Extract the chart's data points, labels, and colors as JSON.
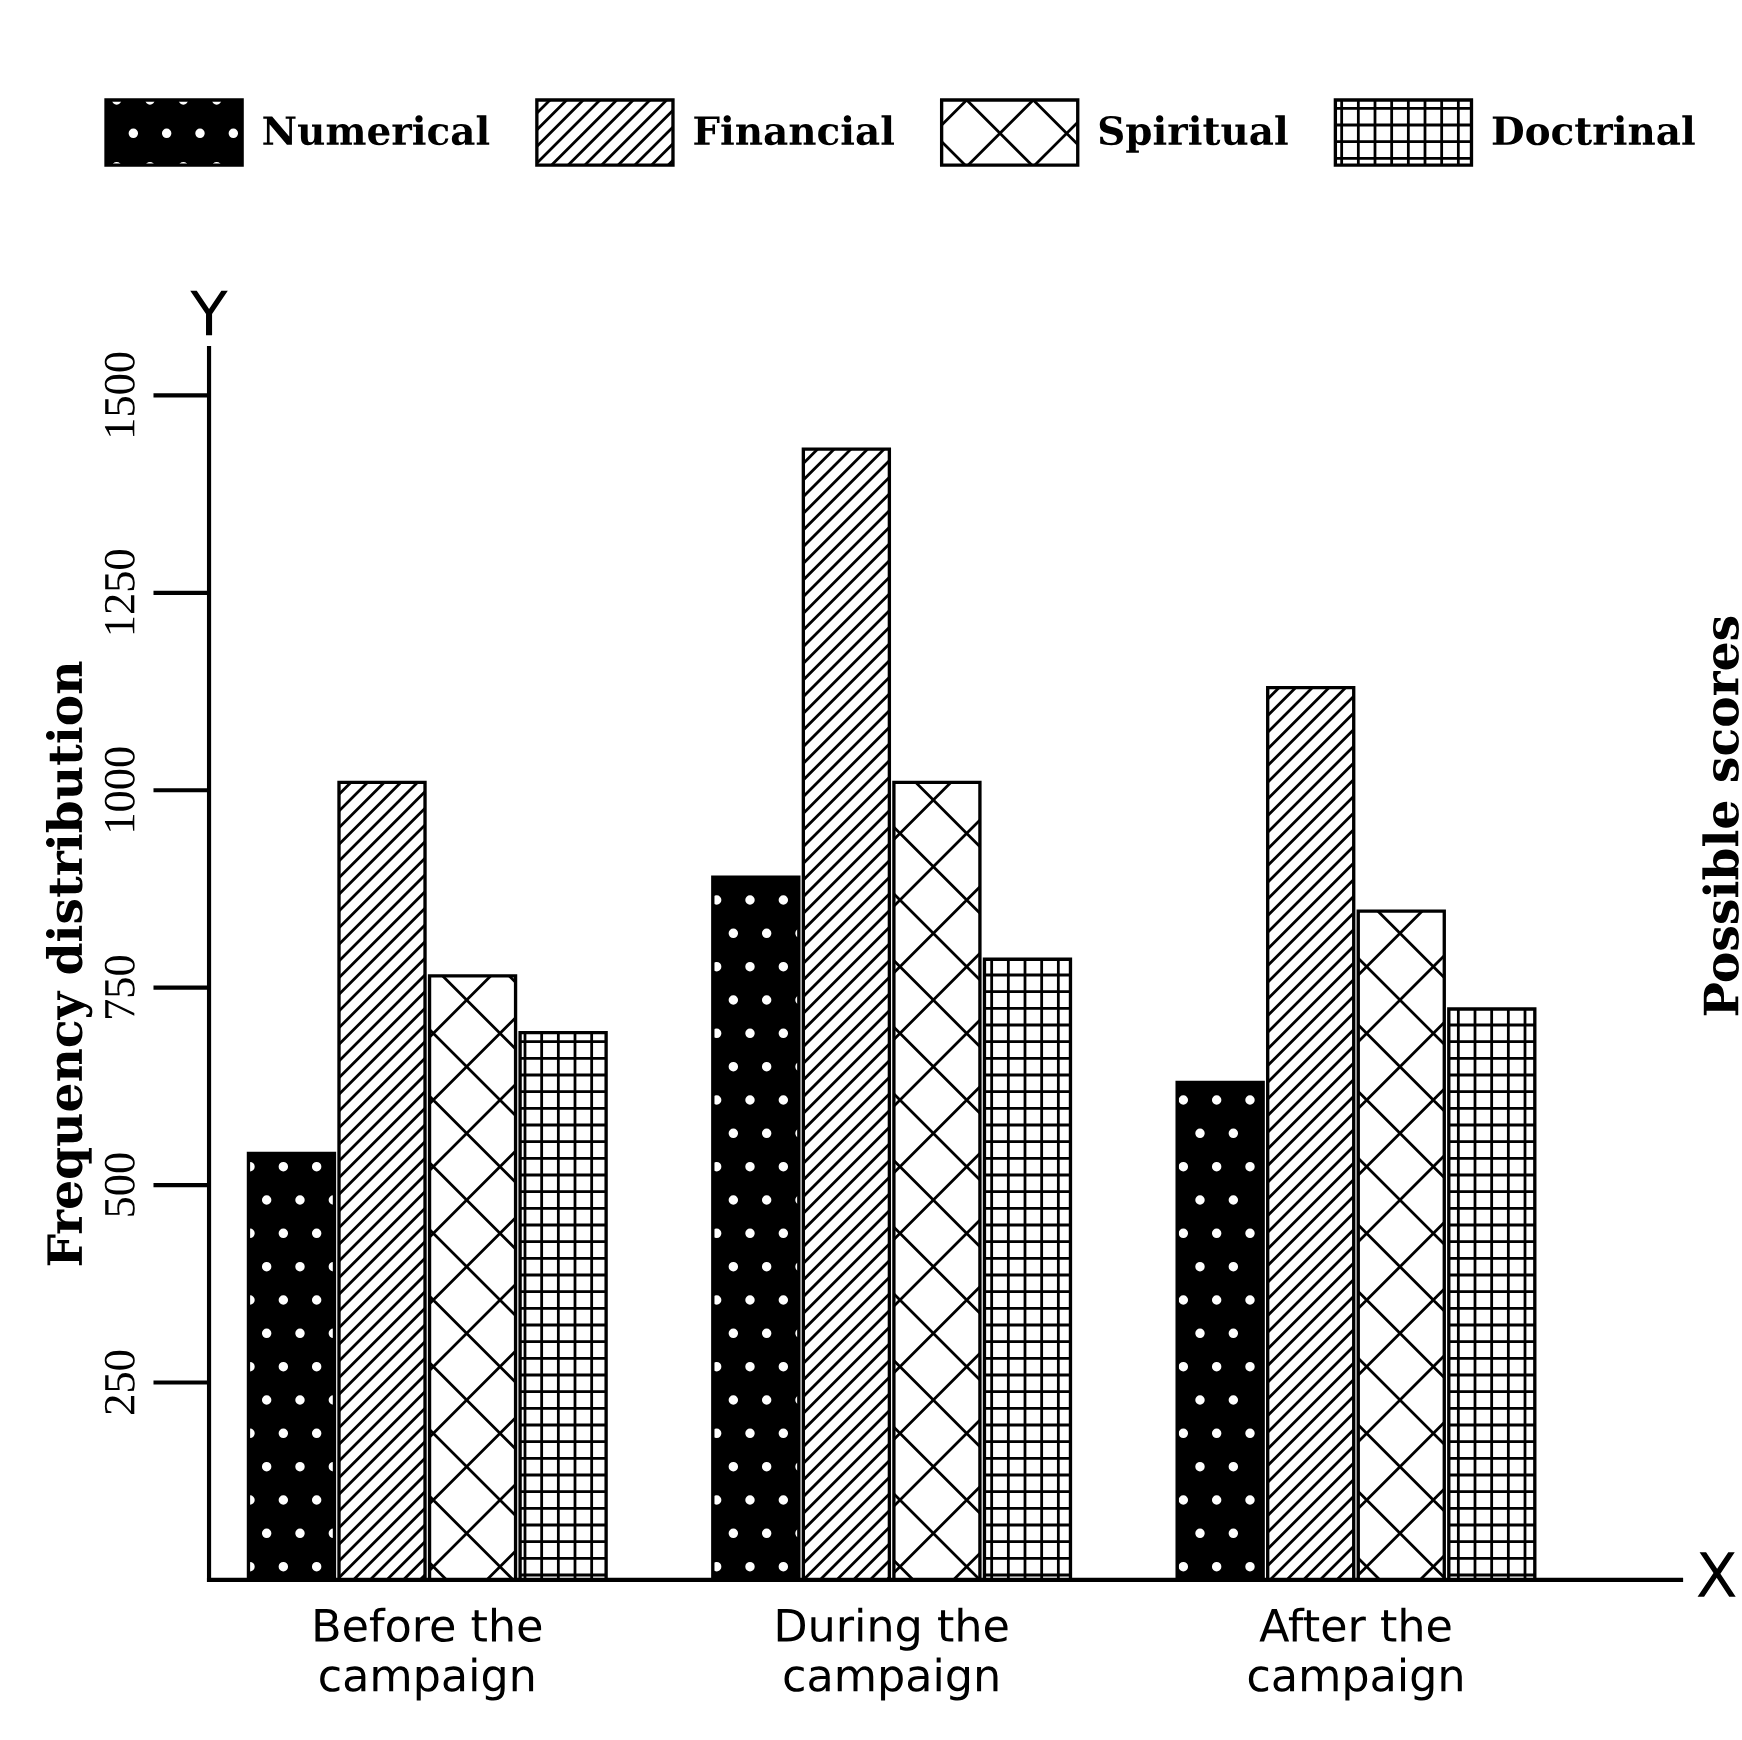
{
  "chart_data": {
    "type": "bar",
    "categories": [
      "Before the\ncampaign",
      "During the\ncampaign",
      "After the\ncampaign"
    ],
    "series": [
      {
        "name": "Numerical",
        "color": "#000000",
        "values": [
          540,
          890,
          630
        ]
      },
      {
        "name": "Financial",
        "color": "#000000",
        "values": [
          1010,
          1432,
          1130
        ]
      },
      {
        "name": "Spiritual",
        "color": "#000000",
        "values": [
          765,
          1010,
          847
        ]
      },
      {
        "name": "Doctrinal",
        "color": "#000000",
        "values": [
          693,
          786,
          723
        ]
      }
    ],
    "ylabel": "Frequency distribution",
    "annotations": [
      "Y",
      "X",
      "Possible scores"
    ],
    "ylim": [
      0,
      1560
    ],
    "yticks": [
      250,
      500,
      750,
      1000,
      1250,
      1500
    ],
    "grid": false,
    "legend": "top"
  }
}
